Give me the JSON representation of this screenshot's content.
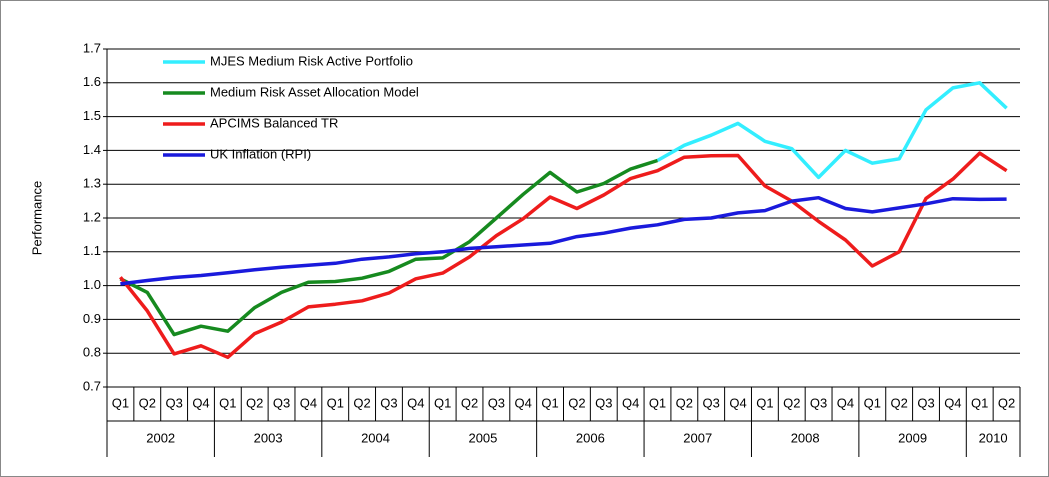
{
  "chart_data": {
    "type": "line",
    "y_label": "Performance",
    "categories": [
      "Q1",
      "Q2",
      "Q3",
      "Q4",
      "Q1",
      "Q2",
      "Q3",
      "Q4",
      "Q1",
      "Q2",
      "Q3",
      "Q4",
      "Q1",
      "Q2",
      "Q3",
      "Q4",
      "Q1",
      "Q2",
      "Q3",
      "Q4",
      "Q1",
      "Q2",
      "Q3",
      "Q4",
      "Q1",
      "Q2",
      "Q3",
      "Q4",
      "Q1",
      "Q2",
      "Q3",
      "Q4",
      "Q1",
      "Q2"
    ],
    "x_groups": [
      {
        "label": "2002",
        "count": 4
      },
      {
        "label": "2003",
        "count": 4
      },
      {
        "label": "2004",
        "count": 4
      },
      {
        "label": "2005",
        "count": 4
      },
      {
        "label": "2006",
        "count": 4
      },
      {
        "label": "2007",
        "count": 4
      },
      {
        "label": "2008",
        "count": 4
      },
      {
        "label": "2009",
        "count": 4
      },
      {
        "label": "2010",
        "count": 2
      }
    ],
    "series": [
      {
        "name": "MJES Medium Risk Active Portfolio",
        "color": "#33eeff",
        "values": [
          null,
          null,
          null,
          null,
          null,
          null,
          null,
          null,
          null,
          null,
          null,
          null,
          null,
          null,
          null,
          null,
          null,
          null,
          null,
          null,
          1.37,
          1.415,
          1.445,
          1.48,
          1.427,
          1.405,
          1.32,
          1.4,
          1.362,
          1.375,
          1.52,
          1.585,
          1.6,
          1.525
        ]
      },
      {
        "name": "Medium Risk Asset Allocation Model",
        "color": "#168a1f",
        "values": [
          1.02,
          0.98,
          0.855,
          0.88,
          0.865,
          0.935,
          0.98,
          1.01,
          1.012,
          1.022,
          1.042,
          1.078,
          1.082,
          1.13,
          1.2,
          1.27,
          1.335,
          1.277,
          1.302,
          1.345,
          1.37,
          null,
          null,
          null,
          null,
          null,
          null,
          null,
          null,
          null,
          null,
          null,
          null,
          null
        ]
      },
      {
        "name": "APCIMS Balanced TR",
        "color": "#ee1c1c",
        "values": [
          1.025,
          0.925,
          0.798,
          0.822,
          0.788,
          0.858,
          0.892,
          0.937,
          0.945,
          0.955,
          0.978,
          1.02,
          1.037,
          1.085,
          1.148,
          1.198,
          1.262,
          1.228,
          1.268,
          1.317,
          1.34,
          1.38,
          1.384,
          1.385,
          1.295,
          1.25,
          1.19,
          1.135,
          1.058,
          1.1,
          1.258,
          1.315,
          1.392,
          1.34
        ]
      },
      {
        "name": "UK Inflation (RPI)",
        "color": "#1a1adc",
        "values": [
          1.005,
          1.015,
          1.024,
          1.03,
          1.038,
          1.047,
          1.054,
          1.06,
          1.066,
          1.078,
          1.085,
          1.094,
          1.1,
          1.11,
          1.115,
          1.12,
          1.125,
          1.145,
          1.155,
          1.17,
          1.18,
          1.196,
          1.2,
          1.215,
          1.222,
          1.25,
          1.26,
          1.228,
          1.218,
          1.23,
          1.242,
          1.257,
          1.255,
          1.256
        ]
      }
    ],
    "ylim": [
      0.7,
      1.7
    ],
    "yticks": [
      0.7,
      0.8,
      0.9,
      {
        "value": 1,
        "label": "1.0"
      },
      1.1,
      1.2,
      1.3,
      1.4,
      1.5,
      1.6,
      1.7
    ],
    "grid": true,
    "legend": "top-left"
  }
}
